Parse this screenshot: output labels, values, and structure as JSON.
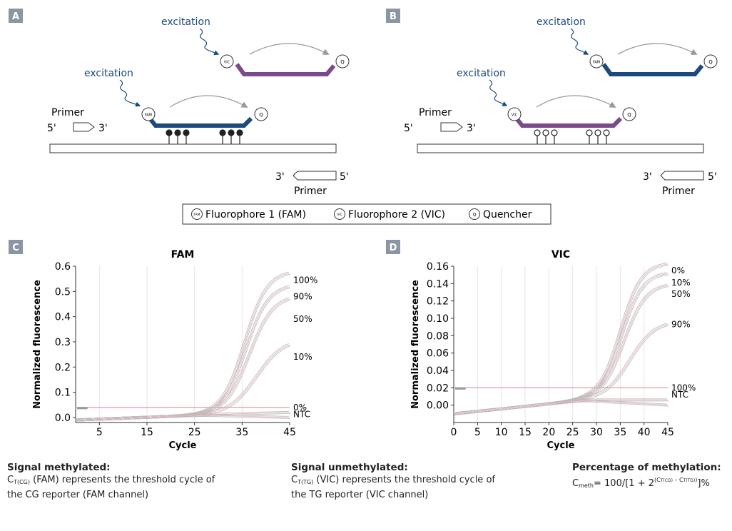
{
  "panels": {
    "a": {
      "letter": "A"
    },
    "b": {
      "letter": "B"
    },
    "c": {
      "letter": "C"
    },
    "d": {
      "letter": "D"
    }
  },
  "labels": {
    "excitation": "excitation",
    "primer": "Primer",
    "five_prime": "5'",
    "three_prime": "3'",
    "fam_circle": "FAM",
    "vic_circle": "VIC",
    "q_circle": "Q"
  },
  "legend": {
    "fam": "Fluorophore 1 (FAM)",
    "vic": "Fluorophore 2 (VIC)",
    "q": "Quencher"
  },
  "colors": {
    "panel_letter_bg": "#8c95a3",
    "fam_probe": "#1b4a7e",
    "vic_probe": "#7a4a8a",
    "arrow": "#999999",
    "threshold": "#e8a0a8",
    "curve": "#b8b8b8"
  },
  "chart_data": [
    {
      "type": "line",
      "title": "FAM",
      "xlabel": "Cycle",
      "ylabel": "Normalized fluorescence",
      "xlim": [
        0,
        45
      ],
      "ylim": [
        -0.02,
        0.6
      ],
      "xticks": [
        5,
        15,
        25,
        35,
        45
      ],
      "yticks": [
        0.0,
        0.1,
        0.2,
        0.3,
        0.4,
        0.5,
        0.6
      ],
      "ytick_labels": [
        "0.0",
        "0.1",
        "0.2",
        "0.3",
        "0.4",
        "0.5",
        "0.6"
      ],
      "threshold": 0.04,
      "baseline_start": -0.01,
      "baseline_end": 0.01,
      "grid": true,
      "series": [
        {
          "name": "100%",
          "final": 0.54,
          "midpoint": 35.5,
          "slope": 0.42
        },
        {
          "name": "90%",
          "final": 0.49,
          "midpoint": 35.8,
          "slope": 0.42
        },
        {
          "name": "50%",
          "final": 0.45,
          "midpoint": 36.5,
          "slope": 0.4
        },
        {
          "name": "10%",
          "final": 0.29,
          "midpoint": 38.0,
          "slope": 0.35
        },
        {
          "name": "0%",
          "final": 0.02,
          "midpoint": 30,
          "slope": 0.1
        },
        {
          "name": "NTC",
          "final": 0.0,
          "midpoint": 40,
          "slope": 0.1
        }
      ],
      "end_labels": [
        {
          "text": "100%",
          "y": 0.545
        },
        {
          "text": "90%",
          "y": 0.48
        },
        {
          "text": "50%",
          "y": 0.39
        },
        {
          "text": "10%",
          "y": 0.24
        },
        {
          "text": "0%",
          "y": 0.04
        },
        {
          "text": "NTC",
          "y": 0.013
        }
      ]
    },
    {
      "type": "line",
      "title": "VIC",
      "xlabel": "Cycle",
      "ylabel": "Normalized fluorescence",
      "xlim": [
        0,
        45
      ],
      "ylim": [
        -0.02,
        0.16
      ],
      "xticks": [
        0,
        5,
        10,
        15,
        20,
        25,
        30,
        35,
        40,
        45
      ],
      "yticks": [
        0.0,
        0.02,
        0.04,
        0.06,
        0.08,
        0.1,
        0.12,
        0.14,
        0.16
      ],
      "ytick_labels": [
        "0.00",
        "0.02",
        "0.04",
        "0.06",
        "0.08",
        "0.10",
        "0.12",
        "0.14",
        "0.16"
      ],
      "threshold": 0.02,
      "baseline_start": -0.01,
      "baseline_end": 0.006,
      "grid": true,
      "series": [
        {
          "name": "0%",
          "final": 0.152,
          "midpoint": 35.0,
          "slope": 0.45
        },
        {
          "name": "10%",
          "final": 0.142,
          "midpoint": 35.3,
          "slope": 0.45
        },
        {
          "name": "50%",
          "final": 0.13,
          "midpoint": 35.8,
          "slope": 0.43
        },
        {
          "name": "90%",
          "final": 0.09,
          "midpoint": 37.0,
          "slope": 0.38
        },
        {
          "name": "100%",
          "final": 0.006,
          "midpoint": 30,
          "slope": 0.1
        },
        {
          "name": "NTC",
          "final": 0.0,
          "midpoint": 40,
          "slope": 0.1
        }
      ],
      "end_labels": [
        {
          "text": "0%",
          "y": 0.155
        },
        {
          "text": "10%",
          "y": 0.141
        },
        {
          "text": "50%",
          "y": 0.128
        },
        {
          "text": "90%",
          "y": 0.093
        },
        {
          "text": "100%",
          "y": 0.02
        },
        {
          "text": "NTC",
          "y": 0.012
        }
      ]
    }
  ],
  "captions": {
    "signal_methylated": {
      "title": "Signal methylated:",
      "c": "C",
      "sub": "T(CG)",
      "line1": " (FAM)  represents the threshold cycle of",
      "line2": "the CG reporter (FAM channel)"
    },
    "signal_unmethylated": {
      "title": "Signal unmethylated:",
      "c": "C",
      "sub": "T(TG)",
      "line1": " (VIC)  represents the threshold cycle of",
      "line2": "the TG reporter (VIC channel)"
    },
    "percentage": {
      "title": "Percentage of methylation:",
      "c": "C",
      "sub": "meth",
      "eq": "= 100/[1 + 2",
      "exp_a": "(C",
      "exp_a_sub": "T(CG)",
      "exp_mid": " – C",
      "exp_b_sub": "T(TG)",
      "exp_end": ")",
      "tail": "]%"
    }
  }
}
